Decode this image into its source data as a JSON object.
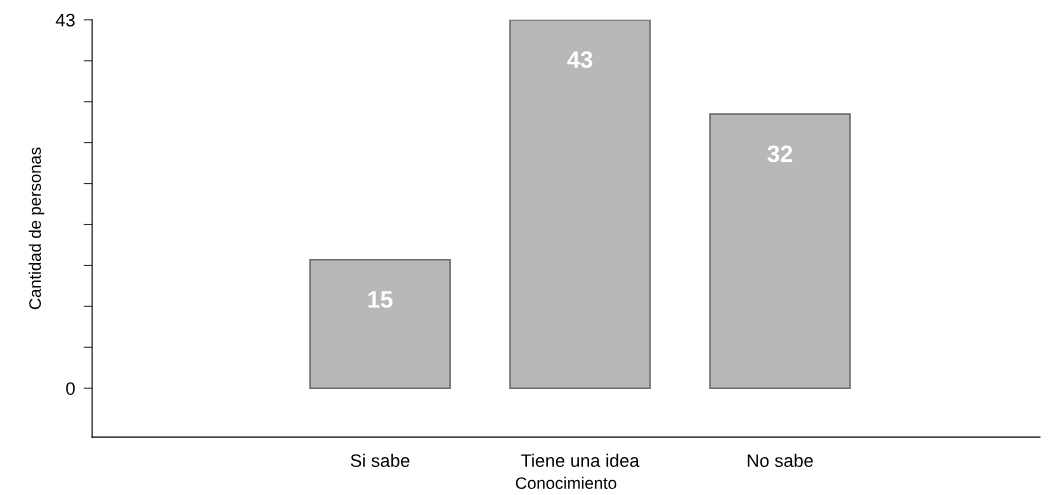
{
  "chart_data": {
    "type": "bar",
    "xlabel": "Conocimiento",
    "ylabel": "Cantidad de personas",
    "categories": [
      "Si sabe",
      "Tiene una idea",
      "No sabe"
    ],
    "values": [
      15,
      43,
      32
    ],
    "color": "#b8b8b8",
    "ylim": [
      -5.7,
      43
    ],
    "yticks": [
      0,
      {
        "value": 4.78,
        "label": null
      },
      {
        "value": 9.56,
        "label": null
      },
      {
        "value": 14.33,
        "label": null
      },
      {
        "value": 19.11,
        "label": null
      },
      {
        "value": 23.89,
        "label": null
      },
      {
        "value": 28.67,
        "label": null
      },
      {
        "value": 33.44,
        "label": null
      },
      {
        "value": 38.22,
        "label": null
      },
      43
    ],
    "data_labels": true,
    "grid": false,
    "legend": false
  }
}
